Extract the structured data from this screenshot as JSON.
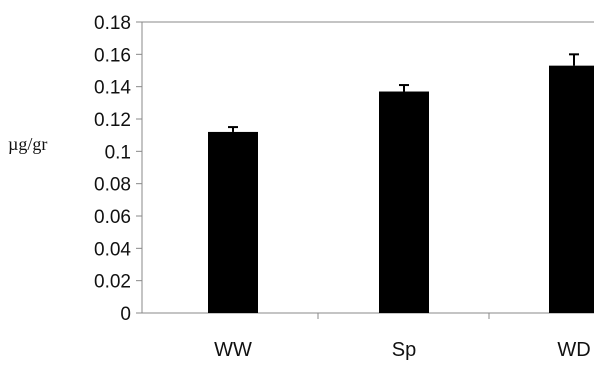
{
  "chart_data": {
    "type": "bar",
    "categories": [
      "WW",
      "Sp",
      "WD"
    ],
    "values": [
      0.112,
      0.137,
      0.153
    ],
    "errors": [
      0.003,
      0.004,
      0.007
    ],
    "ylabel": "µg/gr",
    "ylim": [
      0,
      0.18
    ],
    "yticks": [
      "0",
      "0.02",
      "0.04",
      "0.06",
      "0.08",
      "0.1",
      "0.12",
      "0.14",
      "0.16",
      "0.18"
    ],
    "bar_color": "#000000",
    "grid": false
  }
}
